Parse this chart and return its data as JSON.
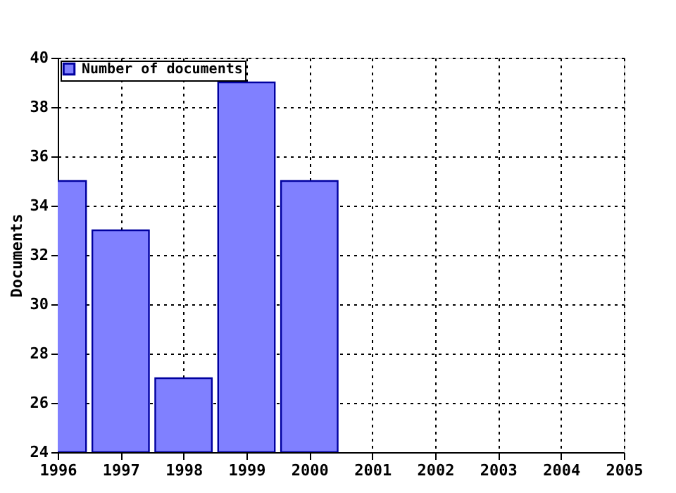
{
  "chart_data": {
    "type": "bar",
    "x": [
      1996,
      1997,
      1998,
      1999,
      2000
    ],
    "series": [
      {
        "name": "Number of documents",
        "color": "#8080ff",
        "values": [
          35,
          33,
          27,
          39,
          35
        ]
      }
    ],
    "ylabel": "Documents",
    "xlim": [
      1996,
      2005
    ],
    "xticks": [
      1996,
      1997,
      1998,
      1999,
      2000,
      2001,
      2002,
      2003,
      2004,
      2005
    ],
    "ylim": [
      24,
      40
    ],
    "yticks": [
      24,
      26,
      28,
      30,
      32,
      34,
      36,
      38,
      40
    ],
    "grid": true,
    "legend": "top left"
  }
}
